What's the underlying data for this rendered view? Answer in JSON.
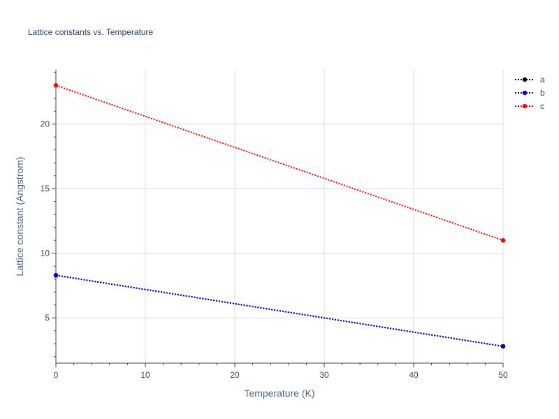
{
  "chart_data": {
    "type": "line",
    "title": "Lattice constants vs. Temperature",
    "xlabel": "Temperature (K)",
    "ylabel": "Lattice constant (Angstrom)",
    "xlim": [
      0,
      50
    ],
    "ylim": [
      1.5,
      24.2
    ],
    "x_ticks": [
      0,
      10,
      20,
      30,
      40,
      50
    ],
    "y_ticks": [
      5,
      10,
      15,
      20
    ],
    "grid": true,
    "legend_position": "top-right",
    "x": [
      0,
      50
    ],
    "series": [
      {
        "name": "a",
        "color": "#000000",
        "values": [
          8.3,
          2.8
        ]
      },
      {
        "name": "b",
        "color": "#0000cc",
        "values": [
          8.3,
          2.8
        ]
      },
      {
        "name": "c",
        "color": "#ff0000",
        "values": [
          23.0,
          11.0
        ]
      }
    ]
  }
}
